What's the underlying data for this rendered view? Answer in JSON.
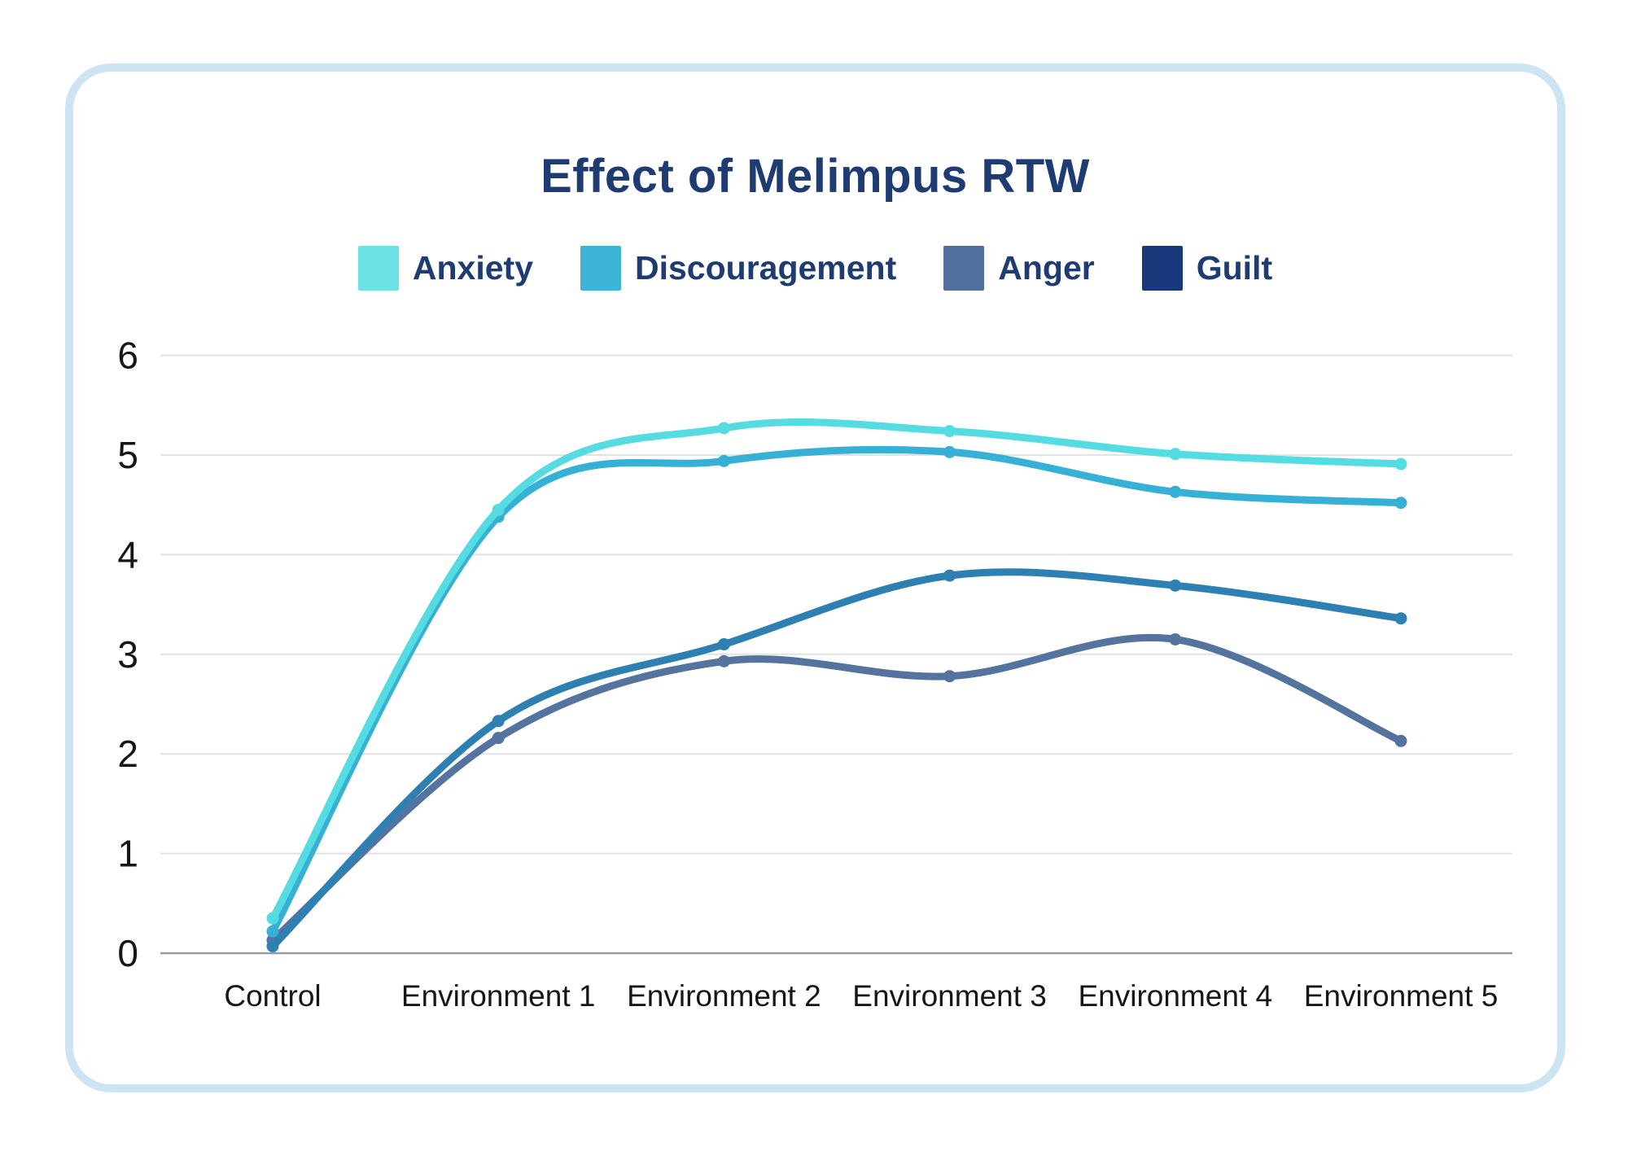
{
  "card": {
    "background": "#ffffff",
    "border_color": "#cde5f2"
  },
  "legend": [
    {
      "label": "Anxiety",
      "color": "#6ce2e6"
    },
    {
      "label": "Discouragement",
      "color": "#3eb5d6"
    },
    {
      "label": "Anger",
      "color": "#4f6f9e"
    },
    {
      "label": "Guilt",
      "color": "#17397c"
    }
  ],
  "chart_data": {
    "type": "line",
    "title": "Effect of Melimpus RTW",
    "xlabel": "",
    "ylabel": "",
    "categories": [
      "Control",
      "Environment 1",
      "Environment 2",
      "Environment 3",
      "Environment 4",
      "Environment 5"
    ],
    "series": [
      {
        "name": "Anxiety",
        "color": "#55dce2",
        "values": [
          0.35,
          4.45,
          5.27,
          5.24,
          5.01,
          4.91
        ]
      },
      {
        "name": "Discouragement",
        "color": "#36b0d4",
        "values": [
          0.22,
          4.38,
          4.94,
          5.03,
          4.63,
          4.52
        ]
      },
      {
        "name": "Anger",
        "color": "#54739f",
        "values": [
          0.13,
          2.16,
          2.93,
          2.78,
          3.15,
          2.13
        ]
      },
      {
        "name": "Guilt",
        "color": "#2e80b2",
        "values": [
          0.07,
          2.33,
          3.1,
          3.79,
          3.69,
          3.36
        ]
      }
    ],
    "ylim": [
      0,
      6
    ],
    "yticks": [
      0,
      1,
      2,
      3,
      4,
      5,
      6
    ],
    "grid": true,
    "legend_position": "top"
  },
  "axis": {
    "tick_color": "#161616",
    "grid_color": "#e2e2e2",
    "baseline_color": "#9a9a9a"
  }
}
